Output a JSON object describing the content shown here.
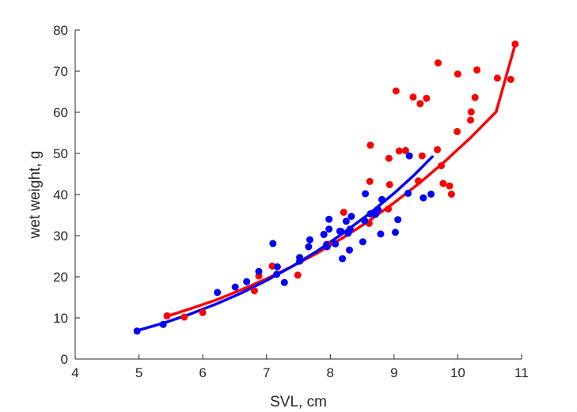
{
  "chart_data": {
    "type": "scatter",
    "title": "",
    "xlabel": "SVL, cm",
    "ylabel": "wet weight, g",
    "xlim": [
      4,
      11
    ],
    "ylim": [
      0,
      80
    ],
    "xticks": [
      4,
      5,
      6,
      7,
      8,
      9,
      10,
      11
    ],
    "yticks": [
      0,
      10,
      20,
      30,
      40,
      50,
      60,
      70,
      80
    ],
    "xtick_labels": [
      "4",
      "5",
      "6",
      "7",
      "8",
      "9",
      "10",
      "11"
    ],
    "ytick_labels": [
      "0",
      "10",
      "20",
      "30",
      "40",
      "50",
      "60",
      "70",
      "80"
    ],
    "grid": false,
    "legend": "none",
    "series": [
      {
        "color": "#ff0000",
        "points": [
          [
            5.44,
            10.5
          ],
          [
            5.71,
            10.2
          ],
          [
            6.0,
            11.3
          ],
          [
            6.81,
            16.6
          ],
          [
            6.88,
            20.2
          ],
          [
            7.09,
            22.6
          ],
          [
            7.49,
            20.4
          ],
          [
            7.9,
            30.3
          ],
          [
            7.97,
            27.9
          ],
          [
            8.21,
            35.7
          ],
          [
            8.61,
            33.0
          ],
          [
            8.62,
            43.2
          ],
          [
            8.63,
            52.0
          ],
          [
            8.91,
            36.5
          ],
          [
            8.92,
            48.8
          ],
          [
            8.93,
            42.4
          ],
          [
            9.03,
            65.2
          ],
          [
            9.08,
            50.6
          ],
          [
            9.18,
            50.7
          ],
          [
            9.3,
            63.7
          ],
          [
            9.38,
            43.3
          ],
          [
            9.41,
            62.1
          ],
          [
            9.44,
            49.4
          ],
          [
            9.51,
            63.4
          ],
          [
            9.68,
            50.9
          ],
          [
            9.69,
            72.0
          ],
          [
            9.74,
            47.0
          ],
          [
            9.77,
            42.7
          ],
          [
            9.87,
            42.1
          ],
          [
            9.9,
            40.1
          ],
          [
            9.99,
            55.3
          ],
          [
            10.0,
            69.3
          ],
          [
            10.2,
            58.1
          ],
          [
            10.21,
            60.1
          ],
          [
            10.27,
            63.6
          ],
          [
            10.3,
            70.3
          ],
          [
            10.62,
            68.3
          ],
          [
            10.83,
            68.0
          ],
          [
            10.9,
            76.6
          ]
        ],
        "fit": [
          [
            5.44,
            10.4
          ],
          [
            5.8,
            12.2
          ],
          [
            6.2,
            14.3
          ],
          [
            6.6,
            16.8
          ],
          [
            7.0,
            19.5
          ],
          [
            7.4,
            22.5
          ],
          [
            7.8,
            25.8
          ],
          [
            8.2,
            29.5
          ],
          [
            8.6,
            33.5
          ],
          [
            9.0,
            38.0
          ],
          [
            9.4,
            42.8
          ],
          [
            9.8,
            48.1
          ],
          [
            10.2,
            53.8
          ],
          [
            10.6,
            60.1
          ],
          [
            10.9,
            76.5
          ]
        ]
      },
      {
        "color": "#0000ff",
        "points": [
          [
            4.97,
            6.8
          ],
          [
            5.38,
            8.4
          ],
          [
            6.23,
            16.2
          ],
          [
            6.51,
            17.5
          ],
          [
            6.69,
            18.8
          ],
          [
            6.88,
            21.3
          ],
          [
            7.1,
            28.1
          ],
          [
            7.16,
            20.6
          ],
          [
            7.17,
            22.4
          ],
          [
            7.28,
            18.6
          ],
          [
            7.52,
            23.8
          ],
          [
            7.52,
            24.7
          ],
          [
            7.66,
            27.3
          ],
          [
            7.68,
            29.0
          ],
          [
            7.9,
            30.3
          ],
          [
            7.94,
            27.8
          ],
          [
            7.95,
            27.3
          ],
          [
            7.98,
            31.6
          ],
          [
            7.98,
            34.0
          ],
          [
            8.08,
            28.0
          ],
          [
            8.15,
            31.1
          ],
          [
            8.17,
            31.0
          ],
          [
            8.19,
            24.4
          ],
          [
            8.25,
            33.5
          ],
          [
            8.28,
            30.6
          ],
          [
            8.3,
            26.5
          ],
          [
            8.31,
            31.6
          ],
          [
            8.33,
            34.7
          ],
          [
            8.51,
            28.5
          ],
          [
            8.54,
            33.6
          ],
          [
            8.55,
            40.2
          ],
          [
            8.63,
            35.3
          ],
          [
            8.71,
            35.2
          ],
          [
            8.75,
            36.3
          ],
          [
            8.79,
            30.4
          ],
          [
            8.81,
            38.8
          ],
          [
            9.02,
            30.8
          ],
          [
            9.06,
            33.9
          ],
          [
            9.22,
            40.3
          ],
          [
            9.24,
            49.4
          ],
          [
            9.46,
            39.2
          ],
          [
            9.58,
            40.1
          ]
        ],
        "fit": [
          [
            4.97,
            6.9
          ],
          [
            5.4,
            8.8
          ],
          [
            5.8,
            10.9
          ],
          [
            6.2,
            13.3
          ],
          [
            6.6,
            16.0
          ],
          [
            7.0,
            19.1
          ],
          [
            7.4,
            22.5
          ],
          [
            7.8,
            26.3
          ],
          [
            8.2,
            30.6
          ],
          [
            8.6,
            35.2
          ],
          [
            9.0,
            40.3
          ],
          [
            9.3,
            44.5
          ],
          [
            9.6,
            49.2
          ]
        ]
      }
    ]
  }
}
